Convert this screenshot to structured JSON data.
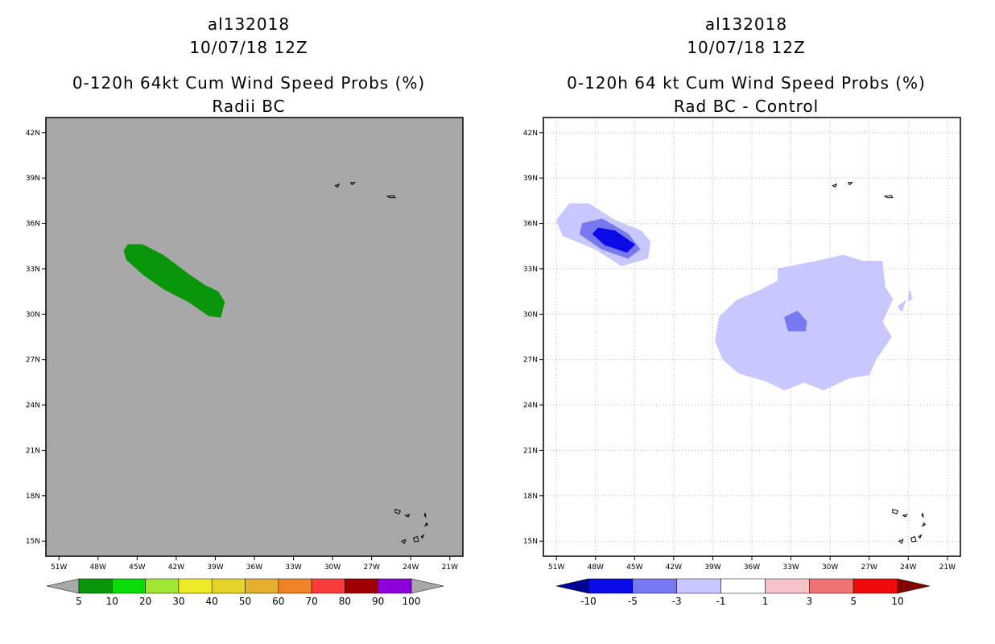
{
  "chart_data": [
    {
      "type": "map",
      "id": "left",
      "title_lines": [
        "al132018",
        "10/07/18 12Z",
        "0-120h 64kt Cum Wind Speed Probs (%)",
        "Radii BC"
      ],
      "x_ticks": [
        "51W",
        "48W",
        "45W",
        "42W",
        "39W",
        "36W",
        "33W",
        "30W",
        "27W",
        "24W",
        "21W"
      ],
      "y_ticks": [
        "42N",
        "39N",
        "36N",
        "33N",
        "30N",
        "27N",
        "24N",
        "21N",
        "18N",
        "15N"
      ],
      "lon_range": [
        -52.0,
        -20.0
      ],
      "lat_range": [
        14.0,
        43.0
      ],
      "background_color": "#a8a8a8",
      "grid": false,
      "shaded_regions": [
        {
          "category": "5-10",
          "color": "#0a960a",
          "outline": [
            [
              -45.7,
              34.6
            ],
            [
              -44.6,
              34.6
            ],
            [
              -43.0,
              33.9
            ],
            [
              -41.0,
              32.6
            ],
            [
              -39.8,
              31.9
            ],
            [
              -38.8,
              31.5
            ],
            [
              -38.3,
              30.8
            ],
            [
              -38.6,
              29.8
            ],
            [
              -39.5,
              29.9
            ],
            [
              -41.0,
              30.8
            ],
            [
              -43.0,
              31.7
            ],
            [
              -44.5,
              32.6
            ],
            [
              -45.8,
              33.6
            ],
            [
              -46.0,
              34.2
            ]
          ]
        }
      ],
      "colorbar": {
        "labels": [
          "5",
          "10",
          "20",
          "30",
          "40",
          "50",
          "60",
          "70",
          "80",
          "90",
          "100"
        ],
        "colors": [
          "#0a960a",
          "#0adc0a",
          "#a0e632",
          "#ebeb28",
          "#e6d228",
          "#e6af2d",
          "#f08228",
          "#fa3c3c",
          "#a00000",
          "#8c00dc"
        ],
        "extend_low_color": "#a8a8a8",
        "extend_high_color": "#a8a8a8"
      }
    },
    {
      "type": "map",
      "id": "right",
      "title_lines": [
        "al132018",
        "10/07/18 12Z",
        "0-120h 64 kt Cum Wind Speed Probs (%)",
        "Rad BC - Control"
      ],
      "x_ticks": [
        "51W",
        "48W",
        "45W",
        "42W",
        "39W",
        "36W",
        "33W",
        "30W",
        "27W",
        "24W",
        "21W"
      ],
      "y_ticks": [
        "42N",
        "39N",
        "36N",
        "33N",
        "30N",
        "27N",
        "24N",
        "21N",
        "18N",
        "15N"
      ],
      "lon_range": [
        -52.0,
        -20.0
      ],
      "lat_range": [
        14.0,
        43.0
      ],
      "background_color": "#ffffff",
      "grid": true,
      "shaded_regions": [
        {
          "category": "-3 to -1",
          "color": "#c8c8ff",
          "outline": [
            [
              -51.0,
              36.2
            ],
            [
              -50.0,
              37.3
            ],
            [
              -48.5,
              37.3
            ],
            [
              -46.5,
              36.2
            ],
            [
              -44.5,
              35.5
            ],
            [
              -43.8,
              34.8
            ],
            [
              -44.0,
              33.7
            ],
            [
              -46.0,
              33.2
            ],
            [
              -48.0,
              34.3
            ],
            [
              -50.5,
              35.2
            ]
          ]
        },
        {
          "category": "-5 to -3",
          "color": "#7878f0",
          "outline": [
            [
              -49.0,
              36.0
            ],
            [
              -47.5,
              36.3
            ],
            [
              -45.5,
              35.3
            ],
            [
              -44.6,
              34.3
            ],
            [
              -45.5,
              33.7
            ],
            [
              -47.5,
              34.3
            ],
            [
              -49.2,
              35.3
            ]
          ]
        },
        {
          "category": "-10 to -5",
          "color": "#0a0ae6",
          "outline": [
            [
              -47.8,
              35.7
            ],
            [
              -46.5,
              35.5
            ],
            [
              -45.0,
              34.6
            ],
            [
              -45.6,
              34.1
            ],
            [
              -47.3,
              34.6
            ],
            [
              -48.2,
              35.3
            ]
          ]
        },
        {
          "category": "-3 to -1",
          "color": "#c8c8ff",
          "outline": [
            [
              -34.0,
              33.0
            ],
            [
              -31.0,
              33.5
            ],
            [
              -29.0,
              33.9
            ],
            [
              -27.5,
              33.5
            ],
            [
              -26.0,
              33.5
            ],
            [
              -25.8,
              31.8
            ],
            [
              -25.2,
              31.0
            ],
            [
              -26.0,
              29.5
            ],
            [
              -25.3,
              28.5
            ],
            [
              -26.5,
              27.0
            ],
            [
              -27.0,
              26.0
            ],
            [
              -28.5,
              25.8
            ],
            [
              -30.5,
              25.0
            ],
            [
              -32.0,
              25.5
            ],
            [
              -33.5,
              25.0
            ],
            [
              -35.0,
              25.6
            ],
            [
              -37.0,
              26.1
            ],
            [
              -38.2,
              27.0
            ],
            [
              -38.8,
              28.2
            ],
            [
              -38.5,
              29.8
            ],
            [
              -37.2,
              30.9
            ],
            [
              -35.3,
              31.6
            ],
            [
              -34.0,
              32.2
            ]
          ]
        },
        {
          "category": "-3 to -1",
          "color": "#c8c8ff",
          "outline": [
            [
              -23.9,
              31.6
            ],
            [
              -23.7,
              31.0
            ],
            [
              -24.0,
              30.9
            ]
          ]
        },
        {
          "category": "-3 to -1",
          "color": "#c8c8ff",
          "outline": [
            [
              -24.8,
              30.5
            ],
            [
              -24.2,
              30.9
            ],
            [
              -24.5,
              30.2
            ]
          ]
        },
        {
          "category": "-5 to -3",
          "color": "#7878f0",
          "outline": [
            [
              -33.5,
              29.8
            ],
            [
              -32.5,
              30.2
            ],
            [
              -31.8,
              29.5
            ],
            [
              -31.9,
              28.9
            ],
            [
              -33.2,
              28.9
            ]
          ]
        }
      ],
      "colorbar": {
        "labels": [
          "-10",
          "-5",
          "-3",
          "-1",
          "1",
          "3",
          "5",
          "10"
        ],
        "colors": [
          "#0a0ae6",
          "#7878f0",
          "#c8c8ff",
          "#ffffff",
          "#f5c3c8",
          "#f07373",
          "#f00a0a"
        ],
        "extend_low_color": "#000096",
        "extend_high_color": "#820000"
      }
    }
  ]
}
